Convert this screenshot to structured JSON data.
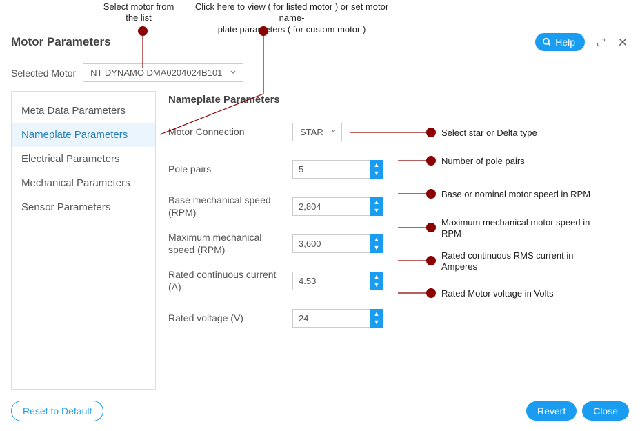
{
  "annotations": {
    "top_left": "Select motor from\nthe list",
    "top_right": "Click here to view ( for listed motor ) or set motor name-\nplate parameters ( for custom motor )"
  },
  "header": {
    "title": "Motor Parameters",
    "help_label": "Help"
  },
  "selected_motor": {
    "label": "Selected Motor",
    "value": "NT DYNAMO DMA0204024B101"
  },
  "sidebar": {
    "items": [
      {
        "label": "Meta Data Parameters",
        "active": false
      },
      {
        "label": "Nameplate Parameters",
        "active": true
      },
      {
        "label": "Electrical Parameters",
        "active": false
      },
      {
        "label": "Mechanical Parameters",
        "active": false
      },
      {
        "label": "Sensor Parameters",
        "active": false
      }
    ]
  },
  "form": {
    "title": "Nameplate Parameters",
    "motor_connection": {
      "label": "Motor Connection",
      "value": "STAR",
      "type": "select",
      "callout": "Select star or Delta type"
    },
    "pole_pairs": {
      "label": "Pole pairs",
      "value": "5",
      "type": "number",
      "callout": "Number of pole pairs"
    },
    "base_speed": {
      "label": "Base mechanical speed (RPM)",
      "value": "2,804",
      "type": "number",
      "callout": "Base or nominal motor speed in RPM"
    },
    "max_speed": {
      "label": "Maximum mechanical speed (RPM)",
      "value": "3,600",
      "type": "number",
      "callout": "Maximum mechanical motor speed in\nRPM"
    },
    "rated_current": {
      "label": "Rated continuous current (A)",
      "value": "4.53",
      "type": "number",
      "callout": "Rated continuous RMS current in\nAmperes"
    },
    "rated_voltage": {
      "label": "Rated voltage (V)",
      "value": "24",
      "type": "number",
      "callout": "Rated Motor voltage in Volts"
    }
  },
  "footer": {
    "reset": "Reset to Default",
    "revert": "Revert",
    "close": "Close"
  },
  "colors": {
    "accent": "#1a9cf0",
    "annotation": "#8b0000"
  }
}
